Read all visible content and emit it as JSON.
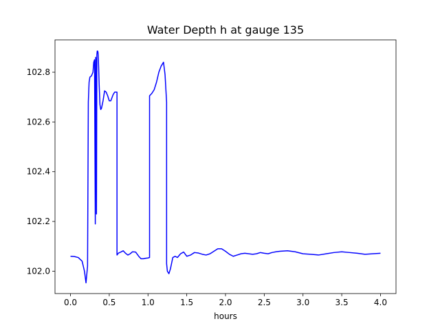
{
  "chart_data": {
    "type": "line",
    "title": "Water Depth h at gauge 135",
    "xlabel": "hours",
    "ylabel": "",
    "xlim": [
      -0.2,
      4.2
    ],
    "ylim": [
      101.91,
      102.93
    ],
    "xticks": [
      0.0,
      0.5,
      1.0,
      1.5,
      2.0,
      2.5,
      3.0,
      3.5,
      4.0
    ],
    "xtick_labels": [
      "0.0",
      "0.5",
      "1.0",
      "1.5",
      "2.0",
      "2.5",
      "3.0",
      "3.5",
      "4.0"
    ],
    "yticks": [
      102.0,
      102.2,
      102.4,
      102.6,
      102.8
    ],
    "ytick_labels": [
      "102.0",
      "102.2",
      "102.4",
      "102.6",
      "102.8"
    ],
    "grid": false,
    "series": [
      {
        "color": "#0000ff",
        "x": [
          0.0,
          0.05,
          0.1,
          0.15,
          0.18,
          0.2,
          0.22,
          0.23,
          0.24,
          0.25,
          0.27,
          0.29,
          0.3,
          0.31,
          0.32,
          0.325,
          0.33,
          0.335,
          0.34,
          0.345,
          0.35,
          0.355,
          0.36,
          0.37,
          0.38,
          0.39,
          0.4,
          0.42,
          0.44,
          0.46,
          0.48,
          0.5,
          0.52,
          0.55,
          0.57,
          0.59,
          0.6,
          0.6,
          0.62,
          0.65,
          0.68,
          0.71,
          0.74,
          0.77,
          0.8,
          0.84,
          0.88,
          0.91,
          0.94,
          0.97,
          1.0,
          1.02,
          1.02,
          1.05,
          1.08,
          1.11,
          1.14,
          1.17,
          1.2,
          1.22,
          1.24,
          1.24,
          1.25,
          1.27,
          1.29,
          1.32,
          1.35,
          1.38,
          1.42,
          1.46,
          1.5,
          1.55,
          1.6,
          1.65,
          1.7,
          1.75,
          1.8,
          1.85,
          1.9,
          1.95,
          2.0,
          2.05,
          2.1,
          2.15,
          2.2,
          2.25,
          2.3,
          2.35,
          2.4,
          2.45,
          2.5,
          2.55,
          2.6,
          2.65,
          2.7,
          2.8,
          2.9,
          3.0,
          3.1,
          3.2,
          3.3,
          3.4,
          3.5,
          3.6,
          3.7,
          3.8,
          3.9,
          4.0
        ],
        "y": [
          102.06,
          102.059,
          102.055,
          102.04,
          102.0,
          101.953,
          102.02,
          102.68,
          102.76,
          102.78,
          102.785,
          102.8,
          102.84,
          102.85,
          102.19,
          102.86,
          102.84,
          102.23,
          102.87,
          102.885,
          102.885,
          102.88,
          102.85,
          102.75,
          102.67,
          102.65,
          102.655,
          102.685,
          102.725,
          102.72,
          102.705,
          102.685,
          102.685,
          102.71,
          102.72,
          102.72,
          102.72,
          102.065,
          102.073,
          102.077,
          102.082,
          102.072,
          102.065,
          102.07,
          102.078,
          102.077,
          102.06,
          102.05,
          102.05,
          102.052,
          102.053,
          102.055,
          102.705,
          102.715,
          102.73,
          102.76,
          102.8,
          102.825,
          102.84,
          102.79,
          102.68,
          102.03,
          102.0,
          101.99,
          102.01,
          102.055,
          102.06,
          102.055,
          102.07,
          102.077,
          102.06,
          102.065,
          102.075,
          102.073,
          102.068,
          102.065,
          102.07,
          102.08,
          102.09,
          102.09,
          102.08,
          102.068,
          102.06,
          102.065,
          102.07,
          102.072,
          102.07,
          102.068,
          102.07,
          102.075,
          102.072,
          102.07,
          102.075,
          102.078,
          102.08,
          102.082,
          102.078,
          102.07,
          102.068,
          102.065,
          102.07,
          102.075,
          102.078,
          102.075,
          102.072,
          102.068,
          102.07,
          102.072
        ]
      }
    ]
  }
}
